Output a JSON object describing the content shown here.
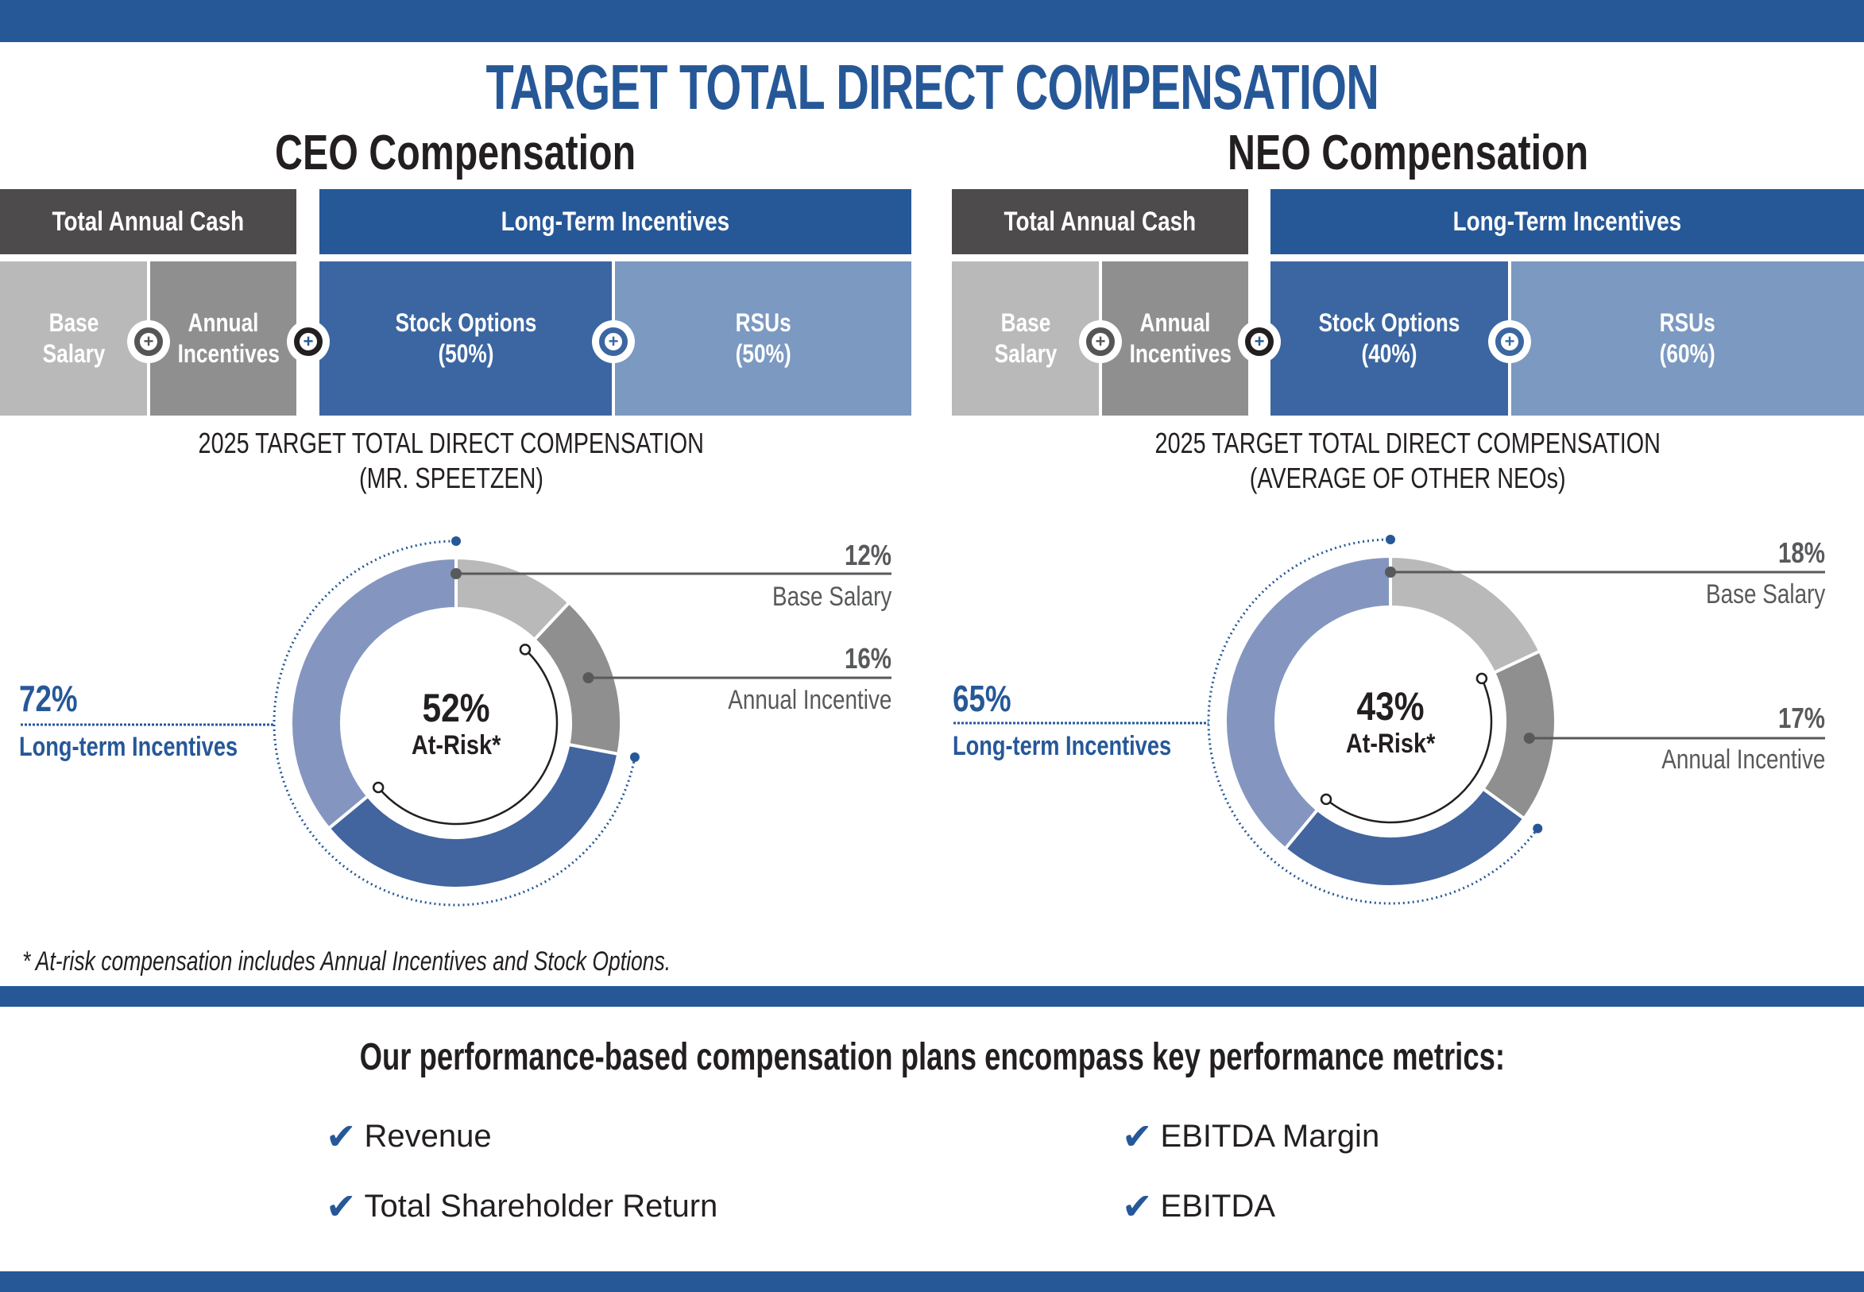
{
  "title": "TARGET TOTAL DIRECT COMPENSATION",
  "colors": {
    "brand_blue": "#265898",
    "dark_gray": "#4d4b4c",
    "base_salary": "#bab9ba",
    "annual_incentive": "#908f90",
    "stock_options": "#42649f",
    "rsus": "#8496c0",
    "text_gray": "#58595b"
  },
  "panels": [
    {
      "heading": "CEO Compensation",
      "cash_header": "Total Annual Cash",
      "lti_header": "Long-Term Incentives",
      "cells": {
        "base": "Base Salary",
        "annual": "Annual Incentives",
        "stock": "Stock Options",
        "stock_pct": "(50%)",
        "rsu": "RSUs",
        "rsu_pct": "(50%)"
      },
      "subtitle_line1": "2025 TARGET TOTAL DIRECT COMPENSATION",
      "subtitle_line2": "(MR. SPEETZEN)",
      "labels": {
        "base_pct": "12%",
        "base_name": "Base Salary",
        "annual_pct": "16%",
        "annual_name": "Annual Incentive",
        "lti_pct": "72%",
        "lti_name": "Long-term Incentives",
        "at_risk_pct": "52%",
        "at_risk_label": "At-Risk*"
      }
    },
    {
      "heading": "NEO Compensation",
      "cash_header": "Total Annual Cash",
      "lti_header": "Long-Term Incentives",
      "cells": {
        "base": "Base Salary",
        "annual": "Annual Incentives",
        "stock": "Stock Options",
        "stock_pct": "(40%)",
        "rsu": "RSUs",
        "rsu_pct": "(60%)"
      },
      "subtitle_line1": "2025 TARGET TOTAL DIRECT COMPENSATION",
      "subtitle_line2": "(AVERAGE OF OTHER NEOs)",
      "labels": {
        "base_pct": "18%",
        "base_name": "Base Salary",
        "annual_pct": "17%",
        "annual_name": "Annual Incentive",
        "lti_pct": "65%",
        "lti_name": "Long-term Incentives",
        "at_risk_pct": "43%",
        "at_risk_label": "At-Risk*"
      }
    }
  ],
  "chart_data": [
    {
      "type": "pie",
      "title": "2025 TARGET TOTAL DIRECT COMPENSATION (MR. SPEETZEN)",
      "categories": [
        "Base Salary",
        "Annual Incentive",
        "Stock Options",
        "RSUs"
      ],
      "values": [
        12,
        16,
        36,
        36
      ],
      "groups": {
        "Long-term Incentives": 72,
        "At-Risk": 52
      },
      "center_label": "52% At-Risk*"
    },
    {
      "type": "pie",
      "title": "2025 TARGET TOTAL DIRECT COMPENSATION (AVERAGE OF OTHER NEOs)",
      "categories": [
        "Base Salary",
        "Annual Incentive",
        "Stock Options",
        "RSUs"
      ],
      "values": [
        18,
        17,
        26,
        39
      ],
      "groups": {
        "Long-term Incentives": 65,
        "At-Risk": 43
      },
      "center_label": "43% At-Risk*"
    }
  ],
  "footnote": "* At-risk compensation includes Annual Incentives and Stock Options.",
  "metrics": {
    "heading": "Our performance-based compensation plans encompass key performance metrics:",
    "check_icon": "✔",
    "items": [
      "Revenue",
      "EBITDA Margin",
      "Total Shareholder Return",
      "EBITDA"
    ]
  }
}
